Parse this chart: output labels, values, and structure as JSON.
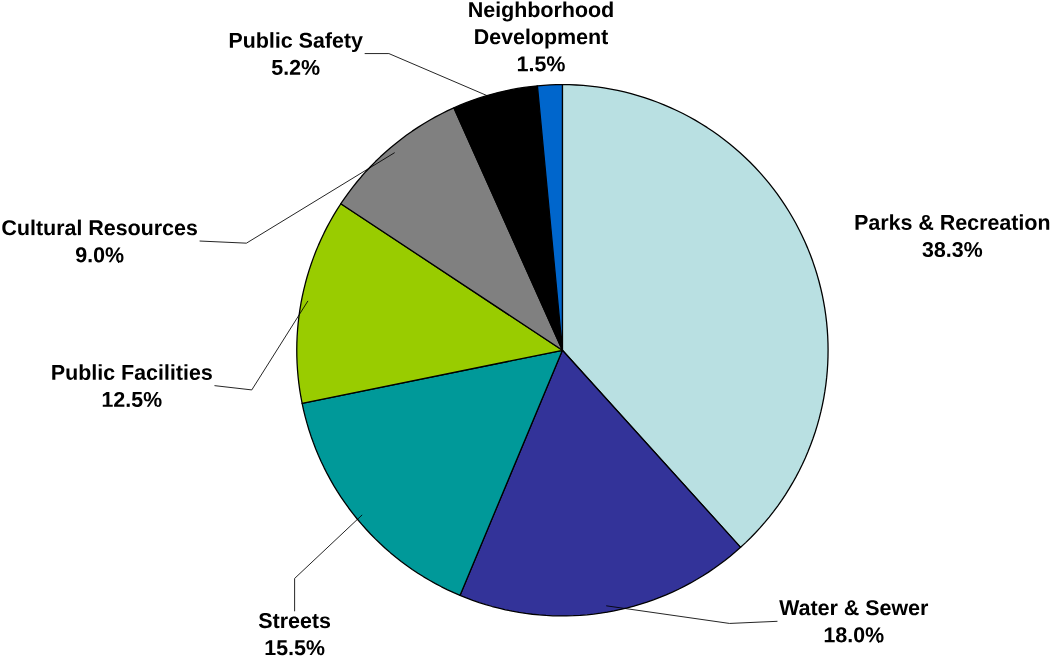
{
  "chart_data": {
    "type": "pie",
    "categories": [
      "Parks & Recreation",
      "Water & Sewer",
      "Streets",
      "Public Facilities",
      "Cultural Resources",
      "Public Safety",
      "Neighborhood Development"
    ],
    "values": [
      38.3,
      18.0,
      15.5,
      12.5,
      9.0,
      5.2,
      1.5
    ],
    "value_labels": [
      "38.3%",
      "18.0%",
      "15.5%",
      "12.5%",
      "9.0%",
      "5.2%",
      "1.5%"
    ],
    "colors": [
      "#b9e0e2",
      "#333399",
      "#009999",
      "#99cc00",
      "#808080",
      "#000000",
      "#0066cc"
    ]
  }
}
